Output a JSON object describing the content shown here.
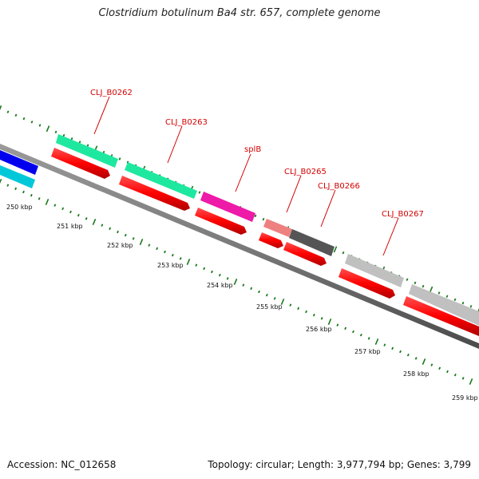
{
  "title": "Clostridium botulinum Ba4 str. 657, complete genome",
  "footer": {
    "accession": "Accession: NC_012658",
    "summary": "Topology: circular; Length: 3,977,794 bp; Genes: 3,799"
  },
  "colors": {
    "label": "#d40000",
    "tick": "#1a7a1a",
    "backbone": "#7a7a7a",
    "forward_cds": "#ff0000"
  },
  "ticks": [
    "250 kbp",
    "251 kbp",
    "252 kbp",
    "253 kbp",
    "254 kbp",
    "255 kbp",
    "256 kbp",
    "257 kbp",
    "258 kbp",
    "259 kbp"
  ],
  "genes": [
    {
      "label": "",
      "color": "#0000ee",
      "track": "outer"
    },
    {
      "label": "",
      "color": "#00c8d8",
      "track": "outer2"
    },
    {
      "label": "CLJ_B0262",
      "color": "#1ee8a0",
      "track": "outer"
    },
    {
      "label": "CLJ_B0263",
      "color": "#1ee8a0",
      "track": "outer"
    },
    {
      "label": "splB",
      "color": "#ee1aa8",
      "track": "outer"
    },
    {
      "label": "CLJ_B0265",
      "color": "#ee8080",
      "track": "outer"
    },
    {
      "label": "CLJ_B0266",
      "color": "#555555",
      "track": "outer"
    },
    {
      "label": "CLJ_B0267",
      "color": "#c0c0c0",
      "track": "outer"
    },
    {
      "label": "",
      "color": "#c0c0c0",
      "track": "outer"
    }
  ]
}
